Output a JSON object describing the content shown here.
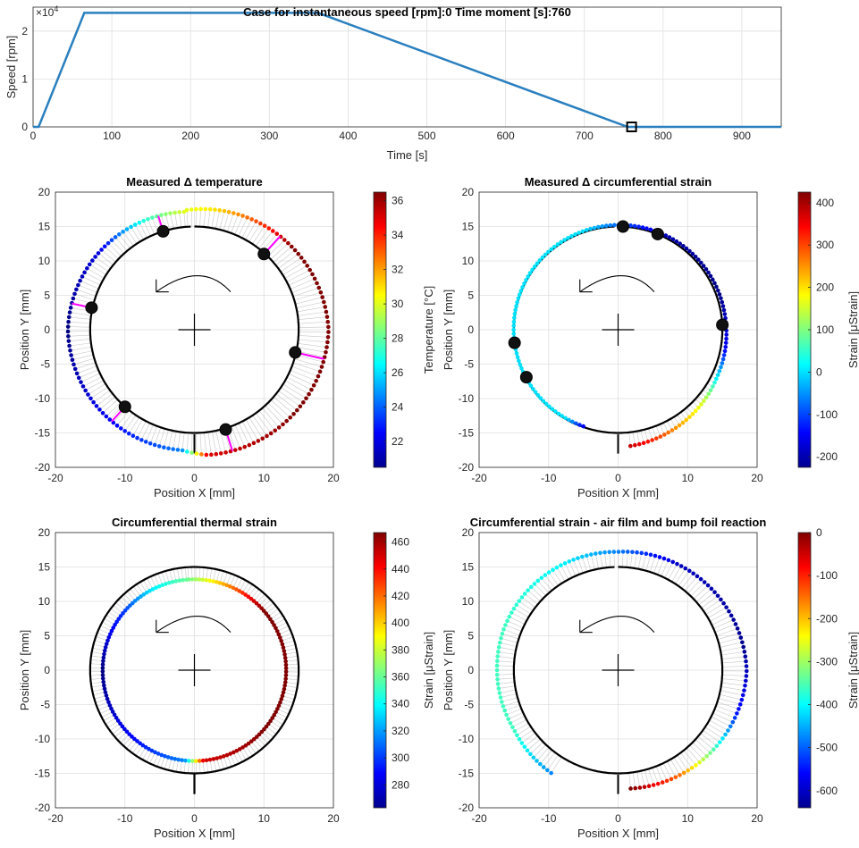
{
  "figure": {
    "title": "Case for instantaneous speed [rpm]:0 Time moment [s]:760"
  },
  "chart_data": [
    {
      "type": "line",
      "title": "Case for instantaneous speed [rpm]:0 Time moment [s]:760",
      "xlabel": "Time [s]",
      "ylabel": "Speed [rpm]",
      "exponent_label": "×10",
      "exponent_power": "4",
      "xlim": [
        0,
        950
      ],
      "ylim": [
        0,
        25000
      ],
      "xticks": [
        "0",
        "100",
        "200",
        "300",
        "400",
        "500",
        "600",
        "700",
        "800",
        "900"
      ],
      "yticks": [
        "0",
        "1",
        "2"
      ],
      "grid": true,
      "color": "#2a7fbf",
      "series": [
        {
          "x": [
            0,
            7,
            65,
            362,
            755,
            950
          ],
          "y": [
            0,
            0,
            23800,
            23800,
            0,
            0
          ]
        }
      ],
      "marker": {
        "x": 760,
        "y": 0,
        "shape": "square"
      }
    },
    {
      "type": "scatter",
      "title": "Measured Δ temperature",
      "xlabel": "Position X [mm]",
      "ylabel": "Position Y [mm]",
      "xlim": [
        -20,
        20
      ],
      "ylim": [
        -20,
        20
      ],
      "xticks": [
        "-20",
        "-10",
        "0",
        "10",
        "20"
      ],
      "yticks": [
        "-20",
        "-15",
        "-10",
        "-5",
        "0",
        "5",
        "10",
        "15",
        "20"
      ],
      "colorbar": {
        "label": "Temperature [°C]",
        "range": [
          20.5,
          36.5
        ],
        "ticks": [
          "22",
          "24",
          "26",
          "28",
          "30",
          "32",
          "34",
          "36"
        ],
        "colormap": "jet"
      },
      "color_profile": [
        {
          "angle": 95,
          "value": 30
        },
        {
          "angle": 115,
          "value": 27
        },
        {
          "angle": 140,
          "value": 22
        },
        {
          "angle": 180,
          "value": 20.5
        },
        {
          "angle": 230,
          "value": 22.5
        },
        {
          "angle": 264,
          "value": 24.5
        },
        {
          "angle": 276,
          "value": 35
        },
        {
          "angle": 320,
          "value": 36.5
        },
        {
          "angle": 360,
          "value": 36.5
        },
        {
          "angle": 400,
          "value": 36.5
        },
        {
          "angle": 415,
          "value": 34
        },
        {
          "angle": 440,
          "value": 31
        },
        {
          "angle": 455,
          "value": 30
        }
      ],
      "offset_profile": [
        {
          "angle": 95,
          "value": 2.2
        },
        {
          "angle": 180,
          "value": 3.2
        },
        {
          "angle": 264,
          "value": 2.6
        },
        {
          "angle": 276,
          "value": 3.3
        },
        {
          "angle": 360,
          "value": 4.3
        },
        {
          "angle": 455,
          "value": 2.4
        }
      ],
      "sensors": [
        {
          "x": -4.5,
          "y": 14.3
        },
        {
          "x": 10.0,
          "y": 11.0
        },
        {
          "x": -14.8,
          "y": 3.2
        },
        {
          "x": 14.5,
          "y": -3.3
        },
        {
          "x": -10.0,
          "y": -11.2
        },
        {
          "x": 4.5,
          "y": -14.5
        }
      ],
      "sensor_links": true
    },
    {
      "type": "scatter",
      "title": "Measured Δ circumferential strain",
      "xlabel": "Position X [mm]",
      "ylabel": "Position Y [mm]",
      "xlim": [
        -20,
        20
      ],
      "ylim": [
        -20,
        20
      ],
      "xticks": [
        "-20",
        "-10",
        "0",
        "10",
        "20"
      ],
      "yticks": [
        "-20",
        "-15",
        "-10",
        "-5",
        "0",
        "5",
        "10",
        "15",
        "20"
      ],
      "colorbar": {
        "label": "Strain [μStrain]",
        "range": [
          -225,
          425
        ],
        "ticks": [
          "-200",
          "-100",
          "0",
          "100",
          "200",
          "300",
          "400"
        ],
        "colormap": "jet"
      },
      "color_profile": [
        {
          "angle": 276,
          "value": 380
        },
        {
          "angle": 300,
          "value": 250
        },
        {
          "angle": 320,
          "value": 150
        },
        {
          "angle": 335,
          "value": 0
        },
        {
          "angle": 350,
          "value": -150
        },
        {
          "angle": 380,
          "value": -220
        },
        {
          "angle": 420,
          "value": -200
        },
        {
          "angle": 450,
          "value": -80
        },
        {
          "angle": 470,
          "value": 0
        },
        {
          "angle": 600,
          "value": 0
        },
        {
          "angle": 610,
          "value": -150
        }
      ],
      "offset_profile": [
        {
          "angle": 276,
          "value": 2.0
        },
        {
          "angle": 335,
          "value": 0.8
        },
        {
          "angle": 370,
          "value": 0.5
        },
        {
          "angle": 460,
          "value": 0.2
        },
        {
          "angle": 600,
          "value": -0.1
        }
      ],
      "color_range_angles": [
        276,
        612
      ],
      "sensors": [
        {
          "x": 0.7,
          "y": 15.0
        },
        {
          "x": 5.7,
          "y": 13.9
        },
        {
          "x": 15.0,
          "y": 0.7
        },
        {
          "x": -14.9,
          "y": -1.9
        },
        {
          "x": -13.2,
          "y": -6.9
        }
      ],
      "sensor_links": false
    },
    {
      "type": "scatter",
      "title": "Circumferential thermal strain",
      "xlabel": "Position X [mm]",
      "ylabel": "Position Y [mm]",
      "xlim": [
        -20,
        20
      ],
      "ylim": [
        -20,
        20
      ],
      "xticks": [
        "-20",
        "-10",
        "0",
        "10",
        "20"
      ],
      "yticks": [
        "-20",
        "-15",
        "-10",
        "-5",
        "0",
        "5",
        "10",
        "15",
        "20"
      ],
      "colorbar": {
        "label": "Strain [μStrain]",
        "range": [
          263,
          467
        ],
        "ticks": [
          "280",
          "300",
          "320",
          "340",
          "360",
          "380",
          "400",
          "420",
          "440",
          "460"
        ],
        "colormap": "jet"
      },
      "color_profile": [
        {
          "angle": 95,
          "value": 360
        },
        {
          "angle": 115,
          "value": 340
        },
        {
          "angle": 140,
          "value": 300
        },
        {
          "angle": 180,
          "value": 263
        },
        {
          "angle": 230,
          "value": 290
        },
        {
          "angle": 264,
          "value": 315
        },
        {
          "angle": 276,
          "value": 450
        },
        {
          "angle": 320,
          "value": 467
        },
        {
          "angle": 360,
          "value": 467
        },
        {
          "angle": 400,
          "value": 467
        },
        {
          "angle": 415,
          "value": 440
        },
        {
          "angle": 440,
          "value": 390
        },
        {
          "angle": 455,
          "value": 360
        }
      ],
      "offset_profile": [
        {
          "angle": 95,
          "value": -1.8
        },
        {
          "angle": 455,
          "value": -1.8
        }
      ],
      "sensors": [],
      "sensor_links": false
    },
    {
      "type": "scatter",
      "title": "Circumferential strain - air film and bump foil reaction",
      "xlabel": "Position X [mm]",
      "ylabel": "Position Y [mm]",
      "xlim": [
        -20,
        20
      ],
      "ylim": [
        -20,
        20
      ],
      "xticks": [
        "-20",
        "-10",
        "0",
        "10",
        "20"
      ],
      "yticks": [
        "-20",
        "-15",
        "-10",
        "-5",
        "0",
        "5",
        "10",
        "15",
        "20"
      ],
      "colorbar": {
        "label": "Strain [μStrain]",
        "range": [
          -640,
          0
        ],
        "ticks": [
          "-600",
          "-500",
          "-400",
          "-300",
          "-200",
          "-100",
          "0"
        ],
        "colormap": "jet"
      },
      "color_profile": [
        {
          "angle": 276,
          "value": 0
        },
        {
          "angle": 300,
          "value": -150
        },
        {
          "angle": 320,
          "value": -350
        },
        {
          "angle": 340,
          "value": -550
        },
        {
          "angle": 370,
          "value": -630
        },
        {
          "angle": 420,
          "value": -600
        },
        {
          "angle": 450,
          "value": -480
        },
        {
          "angle": 480,
          "value": -400
        },
        {
          "angle": 520,
          "value": -360
        },
        {
          "angle": 570,
          "value": -360
        },
        {
          "angle": 598,
          "value": -480
        }
      ],
      "offset_profile": [
        {
          "angle": 276,
          "value": 2.3
        },
        {
          "angle": 360,
          "value": 3.5
        },
        {
          "angle": 450,
          "value": 2.2
        },
        {
          "angle": 520,
          "value": 2.5
        },
        {
          "angle": 570,
          "value": 2.3
        },
        {
          "angle": 598,
          "value": 2.8
        }
      ],
      "color_range_angles": [
        276,
        598
      ],
      "sensors": [],
      "sensor_links": false
    }
  ]
}
